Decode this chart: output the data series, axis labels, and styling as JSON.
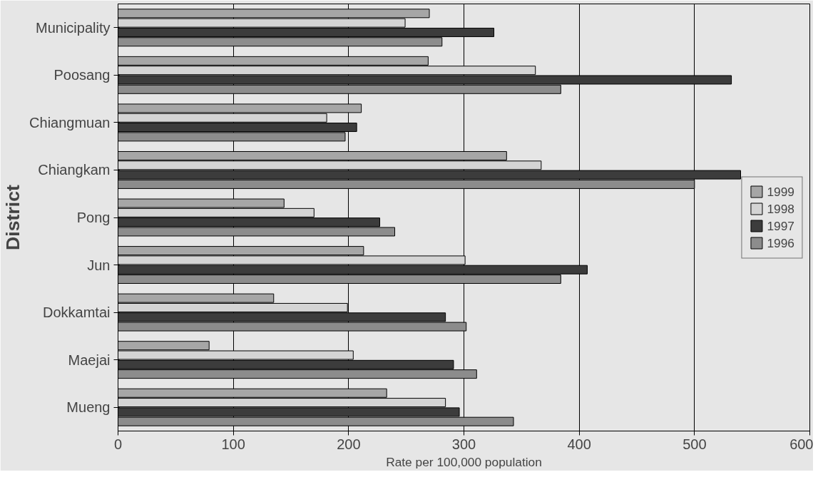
{
  "chart_data": {
    "type": "bar",
    "orientation": "horizontal",
    "xlabel": "Rate per 100,000 population",
    "ylabel": "District",
    "categories": [
      "Municipality",
      "Poosang",
      "Chiangmuan",
      "Chiangkam",
      "Pong",
      "Jun",
      "Dokkamtai",
      "Maejai",
      "Mueng"
    ],
    "series": [
      {
        "name": "1999",
        "color": "#a6a6a6",
        "values": [
          270,
          269,
          211,
          337,
          144,
          213,
          135,
          79,
          233
        ]
      },
      {
        "name": "1998",
        "color": "#d4d4d4",
        "values": [
          249,
          362,
          181,
          367,
          170,
          301,
          199,
          204,
          284
        ]
      },
      {
        "name": "1997",
        "color": "#3c3c3c",
        "values": [
          326,
          532,
          207,
          540,
          227,
          407,
          284,
          291,
          296
        ]
      },
      {
        "name": "1996",
        "color": "#8c8c8c",
        "values": [
          281,
          384,
          197,
          500,
          240,
          384,
          302,
          311,
          343
        ]
      }
    ],
    "xlim": [
      0,
      600
    ],
    "xticks": [
      0,
      100,
      200,
      300,
      400,
      500,
      600
    ],
    "grid": "x",
    "legend": "right"
  }
}
